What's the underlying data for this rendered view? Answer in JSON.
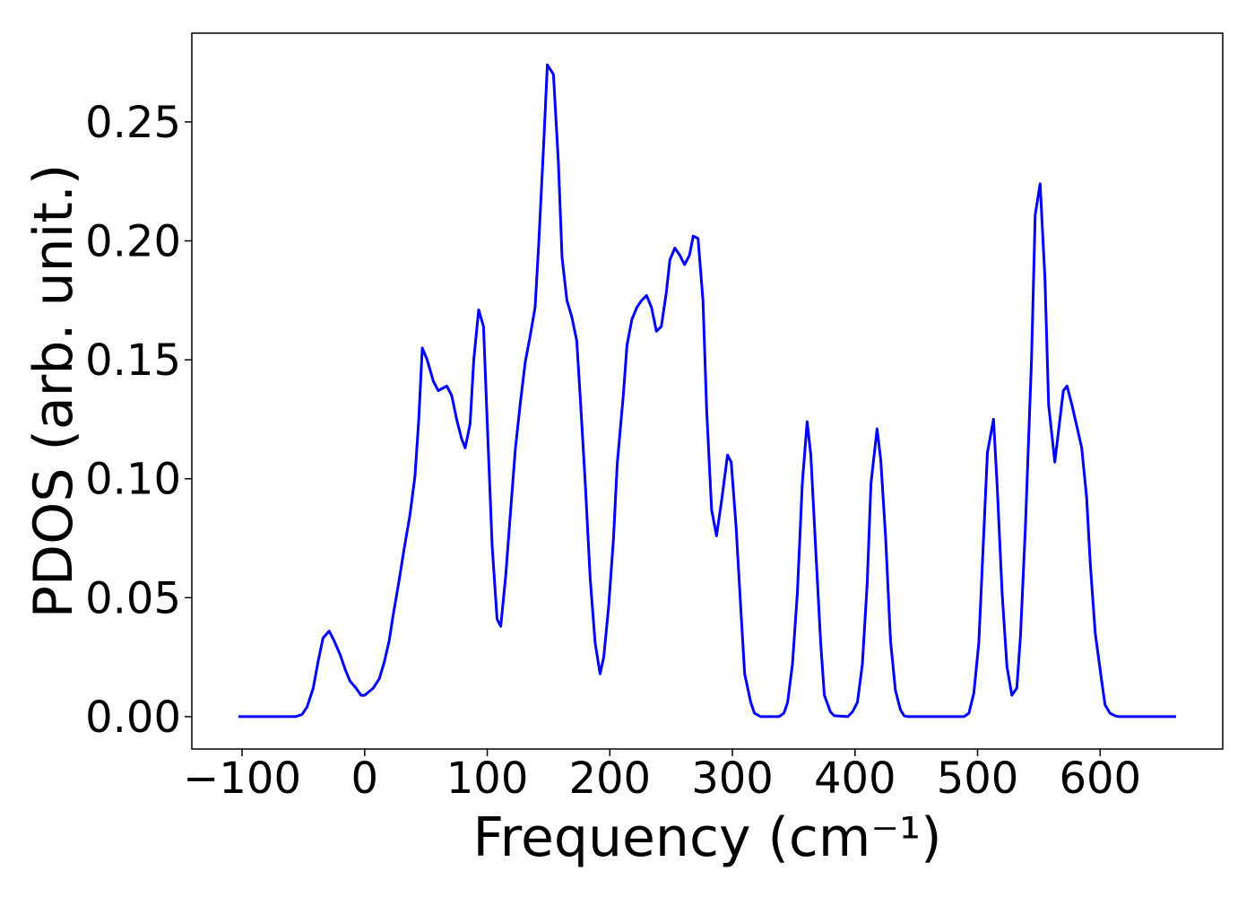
{
  "chart_data": {
    "type": "line",
    "xlabel": "Frequency (cm⁻¹)",
    "ylabel": "PDOS (arb. unit.)",
    "x": [
      -103,
      -56,
      -51,
      -47,
      -42,
      -38,
      -34,
      -29,
      -25,
      -20,
      -16,
      -12,
      -7,
      -3,
      0,
      7,
      12,
      16,
      20,
      23,
      28,
      32,
      37,
      41,
      44,
      47,
      51,
      56,
      60,
      67,
      71,
      75,
      79,
      82,
      86,
      89,
      93,
      97,
      100,
      104,
      108,
      111,
      115,
      119,
      123,
      127,
      131,
      135,
      139,
      142,
      146,
      149,
      154,
      158,
      161,
      165,
      169,
      173,
      176,
      180,
      184,
      188,
      192,
      195,
      199,
      203,
      206,
      211,
      214,
      218,
      222,
      226,
      230,
      234,
      238,
      242,
      246,
      249,
      253,
      257,
      261,
      265,
      268,
      272,
      276,
      279,
      283,
      287,
      291,
      296,
      299,
      303,
      307,
      310,
      315,
      318,
      323,
      338,
      342,
      345,
      349,
      353,
      357,
      361,
      364,
      368,
      372,
      375,
      380,
      383,
      394,
      398,
      402,
      406,
      410,
      413,
      418,
      421,
      425,
      429,
      433,
      437,
      440,
      443,
      489,
      493,
      497,
      501,
      504,
      508,
      513,
      516,
      520,
      524,
      528,
      532,
      535,
      539,
      544,
      547,
      551,
      555,
      558,
      563,
      566,
      570,
      573,
      577,
      581,
      585,
      589,
      592,
      596,
      601,
      604,
      608,
      612,
      615,
      662
    ],
    "series": [
      {
        "name": "PDOS",
        "color": "#0000ff",
        "values": [
          0,
          0,
          0.001,
          0.004,
          0.012,
          0.023,
          0.033,
          0.036,
          0.032,
          0.026,
          0.02,
          0.015,
          0.012,
          0.009,
          0.009,
          0.012,
          0.016,
          0.023,
          0.032,
          0.042,
          0.057,
          0.07,
          0.085,
          0.101,
          0.124,
          0.155,
          0.15,
          0.141,
          0.137,
          0.139,
          0.135,
          0.125,
          0.117,
          0.113,
          0.123,
          0.15,
          0.171,
          0.164,
          0.124,
          0.072,
          0.041,
          0.038,
          0.059,
          0.086,
          0.113,
          0.132,
          0.149,
          0.16,
          0.172,
          0.199,
          0.24,
          0.274,
          0.27,
          0.233,
          0.193,
          0.175,
          0.168,
          0.158,
          0.133,
          0.098,
          0.058,
          0.031,
          0.018,
          0.025,
          0.046,
          0.075,
          0.106,
          0.135,
          0.156,
          0.167,
          0.172,
          0.175,
          0.177,
          0.172,
          0.162,
          0.164,
          0.178,
          0.192,
          0.197,
          0.194,
          0.19,
          0.194,
          0.202,
          0.201,
          0.175,
          0.129,
          0.087,
          0.076,
          0.09,
          0.11,
          0.107,
          0.08,
          0.044,
          0.018,
          0.006,
          0.0015,
          0,
          0,
          0.0015,
          0.006,
          0.022,
          0.052,
          0.098,
          0.124,
          0.11,
          0.07,
          0.031,
          0.009,
          0.002,
          0.0004,
          0,
          0.002,
          0.006,
          0.022,
          0.056,
          0.098,
          0.121,
          0.108,
          0.075,
          0.032,
          0.011,
          0.003,
          0.0004,
          0,
          0,
          0.0015,
          0.01,
          0.031,
          0.065,
          0.111,
          0.125,
          0.097,
          0.052,
          0.021,
          0.009,
          0.012,
          0.034,
          0.079,
          0.15,
          0.211,
          0.224,
          0.184,
          0.131,
          0.107,
          0.12,
          0.137,
          0.139,
          0.131,
          0.122,
          0.113,
          0.092,
          0.064,
          0.035,
          0.016,
          0.005,
          0.0015,
          0.0004,
          0,
          0
        ]
      }
    ],
    "xlim": [
      -141,
      700
    ],
    "ylim": [
      -0.0136,
      0.2873
    ],
    "xticks": [
      {
        "value": -100,
        "label": "−100"
      },
      0,
      100,
      200,
      300,
      400,
      500,
      600
    ],
    "yticks": [
      {
        "value": 0,
        "label": "0.00"
      },
      {
        "value": 0.05,
        "label": "0.05"
      },
      {
        "value": 0.1,
        "label": "0.10"
      },
      {
        "value": 0.15,
        "label": "0.15"
      },
      {
        "value": 0.2,
        "label": "0.20"
      },
      {
        "value": 0.25,
        "label": "0.25"
      }
    ],
    "grid": false
  }
}
